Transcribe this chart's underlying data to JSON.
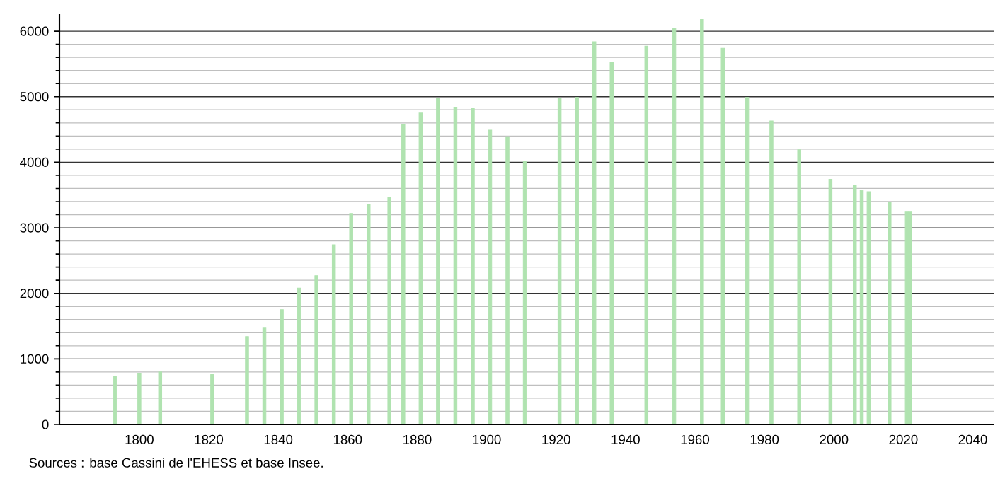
{
  "chart_data": {
    "type": "bar",
    "color": "#b0e3b0",
    "x": [
      1793,
      1800,
      1806,
      1821,
      1831,
      1836,
      1841,
      1846,
      1851,
      1856,
      1861,
      1866,
      1872,
      1876,
      1881,
      1886,
      1891,
      1896,
      1901,
      1906,
      1911,
      1921,
      1926,
      1931,
      1936,
      1946,
      1954,
      1962,
      1968,
      1975,
      1982,
      1990,
      1999,
      2006,
      2008,
      2010,
      2016,
      2021,
      2022
    ],
    "values": [
      740,
      780,
      800,
      760,
      1340,
      1480,
      1750,
      2080,
      2270,
      2740,
      3220,
      3350,
      3460,
      4580,
      4750,
      4970,
      4840,
      4820,
      4490,
      4390,
      4020,
      4970,
      4990,
      5840,
      5530,
      5770,
      6050,
      6180,
      5740,
      4990,
      4630,
      4190,
      3740,
      3650,
      3570,
      3550,
      3390,
      3240,
      3240
    ],
    "xlim": [
      1777,
      2046
    ],
    "xticks": [
      1800,
      1820,
      1840,
      1860,
      1880,
      1900,
      1920,
      1940,
      1960,
      1980,
      2000,
      2020,
      2040
    ],
    "ylim": [
      0,
      6260
    ],
    "yticks": [
      0,
      1000,
      2000,
      3000,
      4000,
      5000,
      6000
    ],
    "grid": "y",
    "annotations": [
      "Sources : base Cassini de l'EHESS et base Insee."
    ]
  }
}
